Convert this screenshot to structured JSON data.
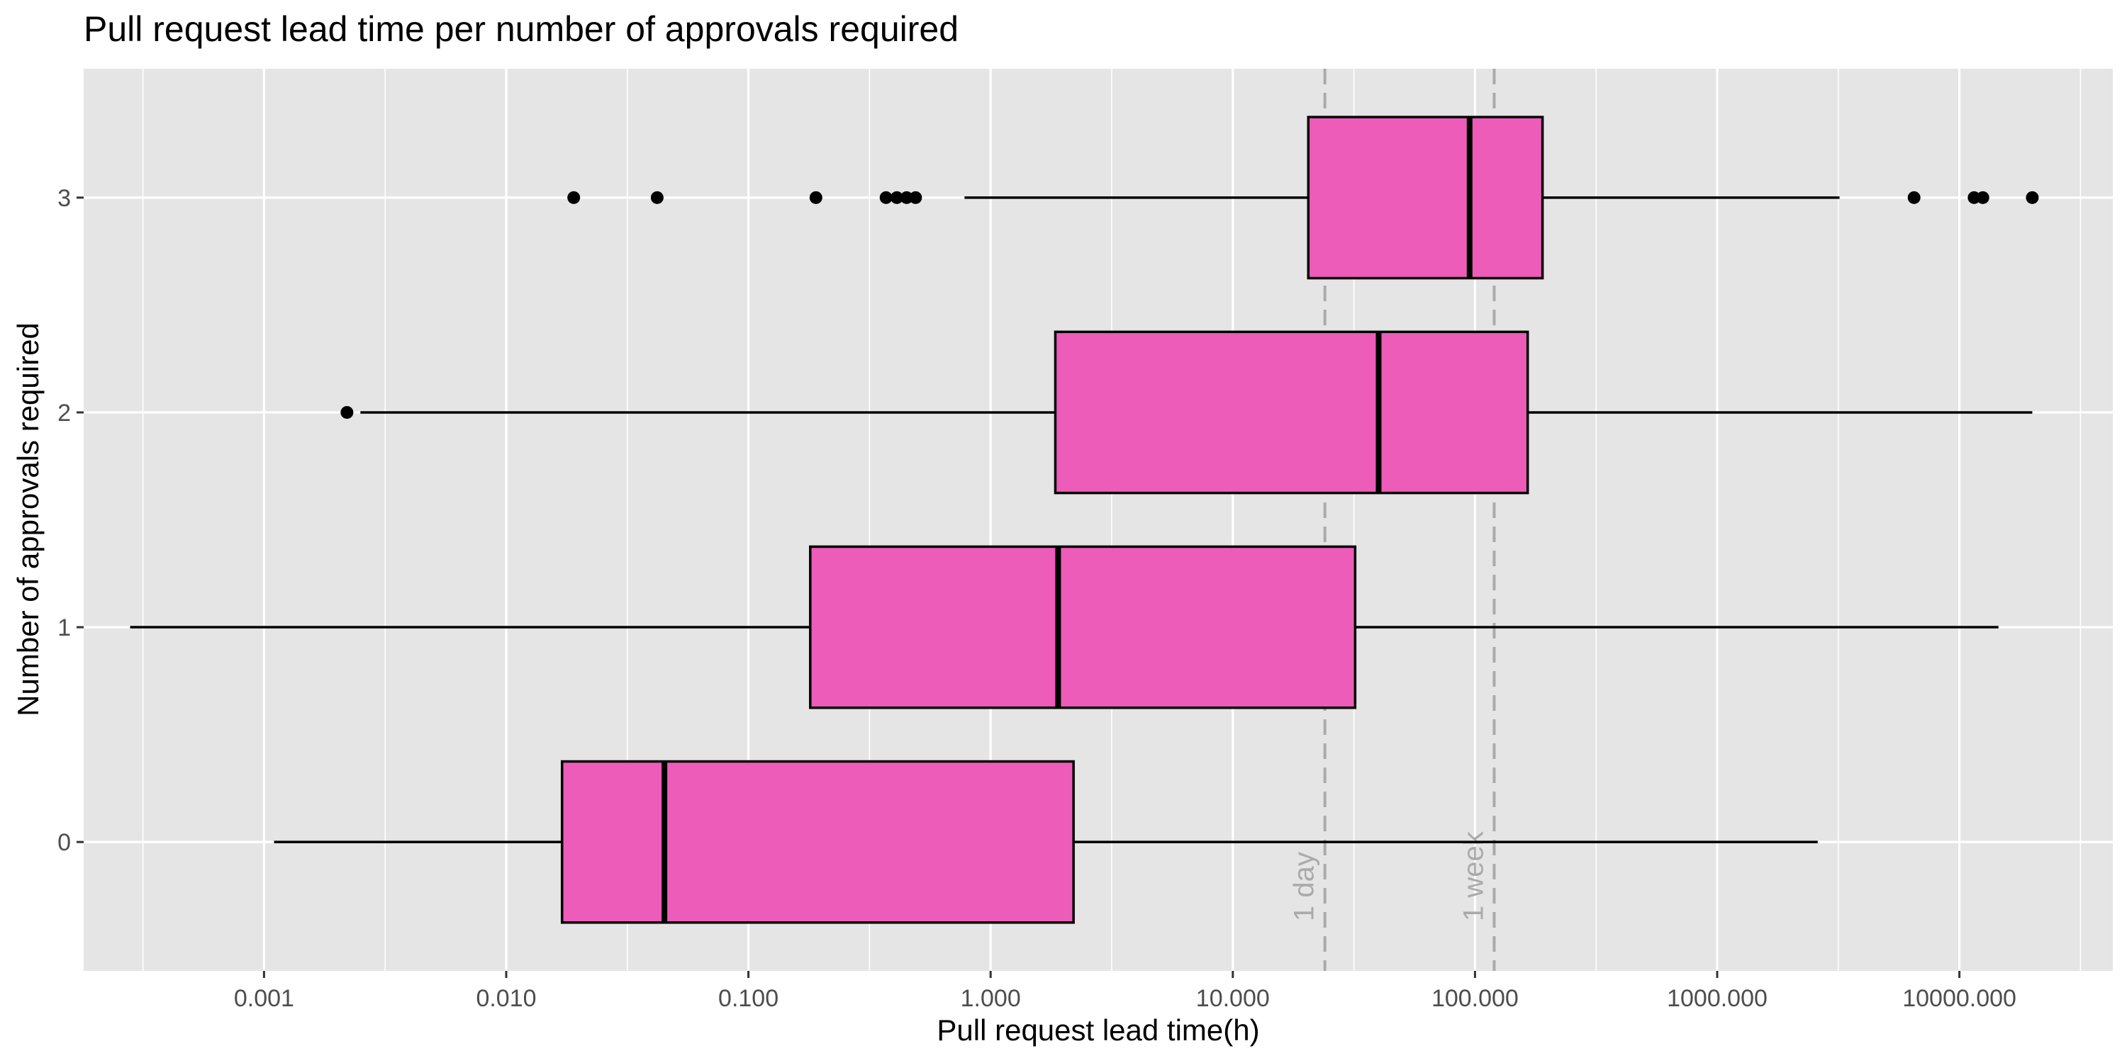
{
  "chart_data": {
    "type": "boxplot",
    "title": "Pull request lead time per number of approvals required",
    "xlabel": "Pull request lead time(h)",
    "ylabel": "Number of approvals required",
    "x_scale": "log10",
    "xlim": [
      0.00018,
      43000
    ],
    "x_ticks": [
      {
        "value": 0.001,
        "label": "0.001"
      },
      {
        "value": 0.01,
        "label": "0.010"
      },
      {
        "value": 0.1,
        "label": "0.100"
      },
      {
        "value": 1,
        "label": "1.000"
      },
      {
        "value": 10,
        "label": "10.000"
      },
      {
        "value": 100,
        "label": "100.000"
      },
      {
        "value": 1000,
        "label": "1000.000"
      },
      {
        "value": 10000,
        "label": "10000.000"
      }
    ],
    "categories": [
      "0",
      "1",
      "2",
      "3"
    ],
    "boxes": [
      {
        "category": "0",
        "whisker_low": 0.0011,
        "q1": 0.017,
        "median": 0.045,
        "q3": 2.2,
        "whisker_high": 2600,
        "outliers": []
      },
      {
        "category": "1",
        "whisker_low": 0.00028,
        "q1": 0.18,
        "median": 1.9,
        "q3": 32,
        "whisker_high": 14500,
        "outliers": []
      },
      {
        "category": "2",
        "whisker_low": 0.0025,
        "q1": 1.85,
        "median": 40,
        "q3": 165,
        "whisker_high": 20000,
        "outliers": [
          0.0022
        ]
      },
      {
        "category": "3",
        "whisker_low": 0.78,
        "q1": 20.5,
        "median": 95,
        "q3": 190,
        "whisker_high": 3200,
        "outliers": [
          0.019,
          0.042,
          0.19,
          0.37,
          0.41,
          0.45,
          0.49,
          6500,
          11500,
          12500,
          20000
        ]
      }
    ],
    "reference_lines": [
      {
        "value": 24,
        "label": "1 day"
      },
      {
        "value": 120,
        "label": "1 week"
      }
    ],
    "colors": {
      "box_fill": "#EC5CB8",
      "box_stroke": "#000000",
      "panel_bg": "#E5E5E5",
      "grid": "#FFFFFF",
      "reference_line": "#AAAAAA"
    },
    "grid": true,
    "legend": "none"
  }
}
